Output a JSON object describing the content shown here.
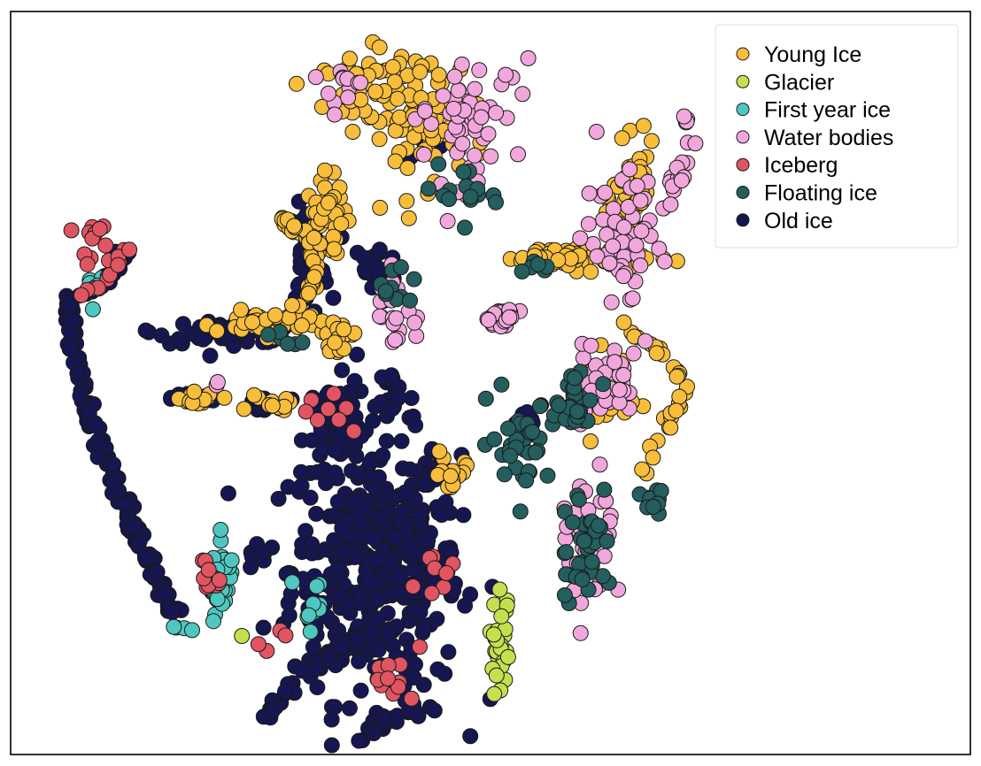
{
  "chart_data": {
    "type": "scatter",
    "title": "",
    "xlabel": "",
    "ylabel": "",
    "xlim": [
      0,
      100
    ],
    "ylim": [
      0,
      100
    ],
    "grid": false,
    "axes_ticks": false,
    "legend_placement": "top-right",
    "marker_edge_color": "#1a1a1a",
    "series": [
      {
        "name": "Young Ice",
        "color": "#f7bd3b",
        "clusters": [
          {
            "cx": 43,
            "cy": 86,
            "rx": 6,
            "ry": 8,
            "n": 90
          },
          {
            "cx": 36,
            "cy": 90,
            "rx": 3,
            "ry": 3,
            "n": 30
          },
          {
            "cx": 33,
            "cy": 72,
            "rx": 2,
            "ry": 5,
            "n": 40
          },
          {
            "cx": 27,
            "cy": 58,
            "rx": 5,
            "ry": 1.5,
            "n": 50
          },
          {
            "cx": 59,
            "cy": 67,
            "rx": 7,
            "ry": 1.5,
            "n": 60
          },
          {
            "cx": 65,
            "cy": 75,
            "rx": 2,
            "ry": 6,
            "n": 50
          },
          {
            "cx": 61,
            "cy": 48,
            "rx": 3,
            "ry": 5,
            "n": 45
          },
          {
            "cx": 20,
            "cy": 48,
            "rx": 2,
            "ry": 1,
            "n": 15
          },
          {
            "cx": 27,
            "cy": 47,
            "rx": 2,
            "ry": 1,
            "n": 12
          },
          {
            "cx": 34,
            "cy": 56,
            "rx": 1.5,
            "ry": 1.5,
            "n": 15
          },
          {
            "cx": 46,
            "cy": 38,
            "rx": 2,
            "ry": 3,
            "n": 15
          }
        ]
      },
      {
        "name": "Glacier",
        "color": "#c5e04f",
        "clusters": [
          {
            "cx": 51,
            "cy": 14,
            "rx": 1,
            "ry": 6,
            "n": 30
          },
          {
            "cx": 24,
            "cy": 16,
            "rx": 0.2,
            "ry": 0.2,
            "n": 1
          }
        ]
      },
      {
        "name": "First year ice",
        "color": "#4dc7c0",
        "clusters": [
          {
            "cx": 22,
            "cy": 23,
            "rx": 1.2,
            "ry": 5,
            "n": 35
          },
          {
            "cx": 31,
            "cy": 20,
            "rx": 3,
            "ry": 3,
            "n": 10
          },
          {
            "cx": 9,
            "cy": 63,
            "rx": 1,
            "ry": 2,
            "n": 6
          },
          {
            "cx": 18,
            "cy": 17,
            "rx": 1,
            "ry": 0.5,
            "n": 4
          }
        ]
      },
      {
        "name": "Water bodies",
        "color": "#f2a7dc",
        "clusters": [
          {
            "cx": 47,
            "cy": 85,
            "rx": 5,
            "ry": 8,
            "n": 55
          },
          {
            "cx": 64,
            "cy": 70,
            "rx": 4,
            "ry": 8,
            "n": 50
          },
          {
            "cx": 51,
            "cy": 59,
            "rx": 2,
            "ry": 1.5,
            "n": 25
          },
          {
            "cx": 62,
            "cy": 50,
            "rx": 3,
            "ry": 5,
            "n": 45
          },
          {
            "cx": 60,
            "cy": 28,
            "rx": 2.5,
            "ry": 8,
            "n": 40
          },
          {
            "cx": 40,
            "cy": 60,
            "rx": 1.5,
            "ry": 5,
            "n": 20
          },
          {
            "cx": 35,
            "cy": 90,
            "rx": 3,
            "ry": 3,
            "n": 12
          },
          {
            "cx": 22,
            "cy": 50,
            "rx": 0.5,
            "ry": 0.5,
            "n": 2
          }
        ]
      },
      {
        "name": "Iceberg",
        "color": "#e05561",
        "clusters": [
          {
            "cx": 9,
            "cy": 68,
            "rx": 2,
            "ry": 3,
            "n": 14
          },
          {
            "cx": 21,
            "cy": 24,
            "rx": 1,
            "ry": 3,
            "n": 12
          },
          {
            "cx": 40,
            "cy": 10,
            "rx": 3,
            "ry": 3,
            "n": 12
          },
          {
            "cx": 44,
            "cy": 25,
            "rx": 2,
            "ry": 4,
            "n": 8
          },
          {
            "cx": 33,
            "cy": 46,
            "rx": 4,
            "ry": 3,
            "n": 8
          },
          {
            "cx": 28,
            "cy": 15,
            "rx": 2,
            "ry": 2,
            "n": 4
          }
        ]
      },
      {
        "name": "Floating ice",
        "color": "#245e5e",
        "clusters": [
          {
            "cx": 53,
            "cy": 42,
            "rx": 3,
            "ry": 5,
            "n": 35
          },
          {
            "cx": 60,
            "cy": 28,
            "rx": 2.5,
            "ry": 8,
            "n": 40
          },
          {
            "cx": 59,
            "cy": 47,
            "rx": 2,
            "ry": 3,
            "n": 30
          },
          {
            "cx": 48,
            "cy": 76,
            "rx": 3,
            "ry": 4,
            "n": 15
          },
          {
            "cx": 40,
            "cy": 63,
            "rx": 2,
            "ry": 3,
            "n": 10
          },
          {
            "cx": 55,
            "cy": 65,
            "rx": 2,
            "ry": 2,
            "n": 6
          },
          {
            "cx": 28,
            "cy": 56,
            "rx": 2,
            "ry": 1,
            "n": 6
          },
          {
            "cx": 67,
            "cy": 34,
            "rx": 2,
            "ry": 2,
            "n": 10
          }
        ]
      },
      {
        "name": "Old ice",
        "color": "#151652",
        "clusters": [
          {
            "cx": 38,
            "cy": 25,
            "rx": 8,
            "ry": 16,
            "n": 420
          },
          {
            "cx": 34,
            "cy": 45,
            "rx": 3,
            "ry": 5,
            "n": 60
          },
          {
            "cx": 23,
            "cy": 57,
            "rx": 7,
            "ry": 1.5,
            "n": 50
          },
          {
            "cx": 31,
            "cy": 67,
            "rx": 2,
            "ry": 6,
            "n": 45
          },
          {
            "cx": 26,
            "cy": 47,
            "rx": 1.5,
            "ry": 1,
            "n": 14
          },
          {
            "cx": 19,
            "cy": 48,
            "rx": 2,
            "ry": 0.7,
            "n": 10
          },
          {
            "cx": 38,
            "cy": 65,
            "rx": 2,
            "ry": 4,
            "n": 30
          },
          {
            "cx": 40,
            "cy": 49,
            "rx": 1.5,
            "ry": 3,
            "n": 15
          },
          {
            "cx": 44,
            "cy": 83,
            "rx": 3,
            "ry": 3,
            "n": 10
          },
          {
            "cx": 54,
            "cy": 46,
            "rx": 2,
            "ry": 2,
            "n": 8
          },
          {
            "cx": 26,
            "cy": 27,
            "rx": 1.5,
            "ry": 2,
            "n": 10
          },
          {
            "cx": 44,
            "cy": 38,
            "rx": 1.5,
            "ry": 3,
            "n": 15
          }
        ]
      }
    ],
    "arc_series": [
      {
        "name": "Old ice",
        "color": "#151652",
        "path": [
          [
            6,
            62
          ],
          [
            6.5,
            56
          ],
          [
            8,
            46
          ],
          [
            11,
            36
          ],
          [
            14,
            27
          ],
          [
            17,
            19
          ]
        ],
        "n": 150
      },
      {
        "name": "Old ice",
        "color": "#151652",
        "path": [
          [
            12,
            68
          ],
          [
            10,
            64
          ],
          [
            7,
            61
          ]
        ],
        "n": 25
      },
      {
        "name": "Iceberg",
        "color": "#e05561",
        "path": [
          [
            12,
            68
          ],
          [
            10,
            64
          ],
          [
            7,
            61
          ]
        ],
        "n": 10
      },
      {
        "name": "First year ice",
        "color": "#4dc7c0",
        "path": [
          [
            11,
            66
          ],
          [
            8,
            62
          ]
        ],
        "n": 6
      },
      {
        "name": "Old ice",
        "color": "#151652",
        "path": [
          [
            26,
            3
          ],
          [
            28,
            8
          ],
          [
            33,
            13
          ],
          [
            38,
            17
          ]
        ],
        "n": 40
      },
      {
        "name": "Old ice",
        "color": "#151652",
        "path": [
          [
            37,
            3
          ],
          [
            40,
            5
          ],
          [
            44,
            6
          ]
        ],
        "n": 25
      },
      {
        "name": "Young Ice",
        "color": "#f7bd3b",
        "path": [
          [
            66,
            38
          ],
          [
            68,
            43
          ],
          [
            70,
            50
          ],
          [
            67,
            55
          ],
          [
            63,
            59
          ]
        ],
        "n": 30
      },
      {
        "name": "Young Ice",
        "color": "#f7bd3b",
        "path": [
          [
            30,
            60
          ],
          [
            32,
            65
          ],
          [
            31,
            70
          ],
          [
            28,
            72
          ]
        ],
        "n": 35
      },
      {
        "name": "Water bodies",
        "color": "#f2a7dc",
        "path": [
          [
            66,
            70
          ],
          [
            69,
            75
          ],
          [
            71,
            82
          ],
          [
            70,
            86
          ]
        ],
        "n": 25
      }
    ],
    "legend": [
      {
        "label": "Young Ice",
        "color": "#f7bd3b"
      },
      {
        "label": "Glacier",
        "color": "#c5e04f"
      },
      {
        "label": "First year ice",
        "color": "#4dc7c0"
      },
      {
        "label": "Water bodies",
        "color": "#f2a7dc"
      },
      {
        "label": "Iceberg",
        "color": "#e05561"
      },
      {
        "label": "Floating ice",
        "color": "#245e5e"
      },
      {
        "label": "Old ice",
        "color": "#151652"
      }
    ]
  }
}
